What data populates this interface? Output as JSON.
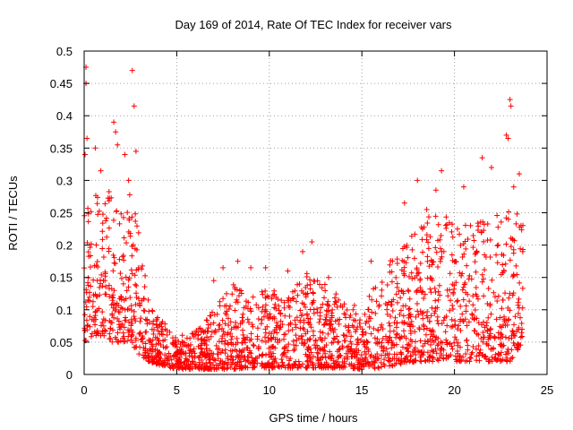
{
  "chart_data": {
    "type": "scatter",
    "title": "Day 169 of 2014, Rate Of TEC Index for receiver vars",
    "xlabel": "GPS time / hours",
    "ylabel": "ROTI / TECUs",
    "xlim": [
      0,
      25
    ],
    "ylim": [
      0,
      0.5
    ],
    "grid": true,
    "marker": "+",
    "color": "#ff0000",
    "x_ticks": [
      0,
      5,
      10,
      15,
      20,
      25
    ],
    "y_ticks": [
      0,
      0.05,
      0.1,
      0.15,
      0.2,
      0.25,
      0.3,
      0.35,
      0.4,
      0.45,
      0.5
    ],
    "envelope": {
      "x": [
        0,
        0.5,
        1,
        1.5,
        2,
        2.5,
        3,
        3.5,
        4,
        5,
        6,
        7,
        8,
        9,
        10,
        11,
        12,
        13,
        14,
        15,
        16,
        17,
        18,
        19,
        20,
        21,
        22,
        23,
        23.7
      ],
      "low": [
        0.05,
        0.06,
        0.06,
        0.05,
        0.05,
        0.05,
        0.03,
        0.02,
        0.015,
        0.008,
        0.008,
        0.008,
        0.008,
        0.01,
        0.01,
        0.01,
        0.01,
        0.01,
        0.01,
        0.008,
        0.01,
        0.015,
        0.02,
        0.02,
        0.02,
        0.02,
        0.02,
        0.02,
        0.05
      ],
      "high": [
        0.26,
        0.3,
        0.28,
        0.3,
        0.26,
        0.28,
        0.22,
        0.12,
        0.09,
        0.06,
        0.07,
        0.1,
        0.14,
        0.12,
        0.14,
        0.12,
        0.16,
        0.14,
        0.12,
        0.1,
        0.16,
        0.2,
        0.22,
        0.26,
        0.24,
        0.24,
        0.24,
        0.26,
        0.24
      ]
    },
    "outliers": [
      {
        "x": 0.1,
        "y": 0.475
      },
      {
        "x": 0.1,
        "y": 0.45
      },
      {
        "x": 0.15,
        "y": 0.365
      },
      {
        "x": 0.05,
        "y": 0.34
      },
      {
        "x": 0.6,
        "y": 0.35
      },
      {
        "x": 0.9,
        "y": 0.315
      },
      {
        "x": 1.6,
        "y": 0.39
      },
      {
        "x": 1.7,
        "y": 0.375
      },
      {
        "x": 1.8,
        "y": 0.355
      },
      {
        "x": 2.2,
        "y": 0.34
      },
      {
        "x": 2.6,
        "y": 0.47
      },
      {
        "x": 2.7,
        "y": 0.415
      },
      {
        "x": 2.8,
        "y": 0.345
      },
      {
        "x": 2.4,
        "y": 0.3
      },
      {
        "x": 7.0,
        "y": 0.145
      },
      {
        "x": 7.5,
        "y": 0.165
      },
      {
        "x": 8.3,
        "y": 0.175
      },
      {
        "x": 9.0,
        "y": 0.165
      },
      {
        "x": 9.8,
        "y": 0.165
      },
      {
        "x": 11.0,
        "y": 0.16
      },
      {
        "x": 11.8,
        "y": 0.19
      },
      {
        "x": 12.3,
        "y": 0.205
      },
      {
        "x": 13.2,
        "y": 0.15
      },
      {
        "x": 15.5,
        "y": 0.175
      },
      {
        "x": 17.3,
        "y": 0.265
      },
      {
        "x": 18.0,
        "y": 0.3
      },
      {
        "x": 18.5,
        "y": 0.255
      },
      {
        "x": 19.0,
        "y": 0.285
      },
      {
        "x": 19.3,
        "y": 0.315
      },
      {
        "x": 20.5,
        "y": 0.29
      },
      {
        "x": 21.5,
        "y": 0.335
      },
      {
        "x": 22.0,
        "y": 0.32
      },
      {
        "x": 22.8,
        "y": 0.37
      },
      {
        "x": 22.9,
        "y": 0.365
      },
      {
        "x": 23.0,
        "y": 0.425
      },
      {
        "x": 23.05,
        "y": 0.415
      },
      {
        "x": 23.5,
        "y": 0.31
      },
      {
        "x": 23.2,
        "y": 0.29
      }
    ]
  }
}
